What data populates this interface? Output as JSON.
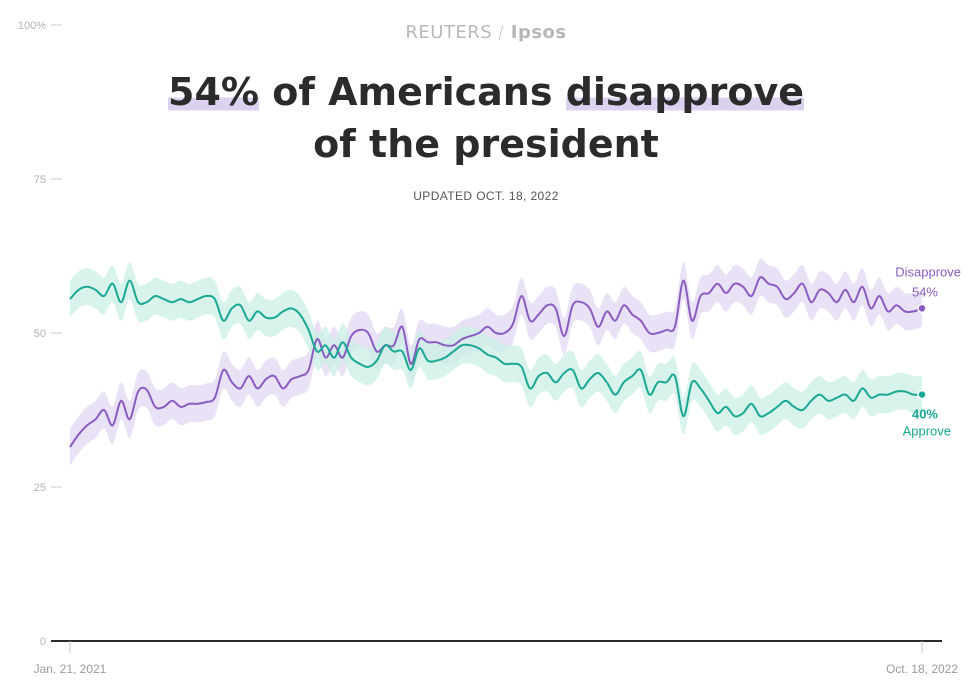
{
  "brand": {
    "left": "REUTERS",
    "sep": "/",
    "right": "Ipsos"
  },
  "title": {
    "hl1": "54%",
    "mid": " of Americans ",
    "hl2": "disapprove",
    "line2": "of the president"
  },
  "updated": "UPDATED OCT. 18, 2022",
  "colors": {
    "disapprove": "#8a5cc2",
    "disapprove_band": "#e2d7f2",
    "approve": "#1aa894",
    "approve_band": "#c9efe6",
    "axis": "#2a2a2a",
    "grid_tick": "#c8c8c8"
  },
  "chart_data": {
    "type": "line",
    "title": "54% of Americans disapprove of the president",
    "x_start_label": "Jan. 21, 2021",
    "x_end_label": "Oct. 18, 2022",
    "ylim": [
      0,
      100
    ],
    "yticks": [
      0,
      25,
      50,
      75,
      100
    ],
    "ytick_labels": [
      "0",
      "25",
      "50",
      "75",
      "100%"
    ],
    "x": [
      0,
      1,
      2,
      3,
      4,
      5,
      6,
      7,
      8,
      9,
      10,
      11,
      12,
      13,
      14,
      15,
      16,
      17,
      18,
      19,
      20,
      21,
      22,
      23,
      24,
      25,
      26,
      27,
      28,
      29,
      30,
      31,
      32,
      33,
      34,
      35,
      36,
      37,
      38,
      39,
      40,
      41,
      42,
      43,
      44,
      45,
      46,
      47,
      48,
      49,
      50,
      51,
      52,
      53,
      54,
      55,
      56,
      57,
      58,
      59,
      60,
      61,
      62,
      63,
      64,
      65,
      66,
      67,
      68,
      69,
      70,
      71,
      72,
      73,
      74,
      75,
      76,
      77,
      78,
      79,
      80,
      81,
      82,
      83,
      84,
      85,
      86,
      87,
      88,
      89,
      90,
      91,
      92,
      93,
      94,
      95,
      96,
      97,
      98,
      99,
      100
    ],
    "series": [
      {
        "name": "Disapprove",
        "end_label": "Disapprove",
        "end_value_label": "54%",
        "values": [
          31.5,
          33.5,
          35,
          36,
          37.5,
          35,
          39,
          36,
          40.5,
          40.8,
          38,
          38,
          39,
          38,
          38.5,
          38.5,
          38.8,
          39.5,
          44,
          42,
          41,
          43,
          41,
          42.5,
          43,
          41,
          42.5,
          43,
          44,
          49,
          46,
          48,
          46,
          49.5,
          50.5,
          50,
          47,
          48,
          48,
          51,
          45,
          49,
          48.5,
          48.5,
          48,
          48,
          49,
          49.5,
          50,
          51,
          50,
          50,
          51.5,
          56,
          52,
          53,
          54.5,
          54,
          49.5,
          54.5,
          55,
          54,
          51,
          53.5,
          52,
          54.5,
          53,
          52,
          50,
          50,
          50.5,
          51,
          58.5,
          52,
          56,
          56.5,
          58,
          56.5,
          58,
          57.5,
          56,
          59,
          58,
          57.5,
          55.5,
          56.5,
          58,
          55,
          57,
          56.5,
          55,
          57,
          55,
          57.5,
          54,
          56,
          53.5,
          54.5,
          53.5,
          53.5,
          54
        ],
        "band": 3
      },
      {
        "name": "Approve",
        "end_label": "Approve",
        "end_value_label": "40%",
        "values": [
          55.5,
          57,
          57.5,
          57,
          56,
          58,
          55,
          58.5,
          55,
          55,
          56,
          55.5,
          55,
          55.5,
          55,
          55.5,
          56,
          55.5,
          52,
          54,
          54.5,
          52,
          53.5,
          52.5,
          52.5,
          53.5,
          54,
          53,
          50.5,
          47,
          48,
          46,
          48.5,
          46,
          45,
          44.5,
          45.5,
          48,
          47,
          47,
          44,
          47.5,
          45.5,
          45.5,
          46,
          47,
          48,
          48,
          47.5,
          46.5,
          46,
          45,
          45,
          44.5,
          41,
          43,
          43.5,
          42,
          43.5,
          44,
          41,
          42.5,
          43.5,
          42,
          40,
          42,
          43,
          44,
          40,
          42,
          42,
          43,
          36.5,
          42,
          41,
          39,
          37,
          38,
          36.5,
          37,
          38.5,
          36.5,
          37,
          38,
          39,
          38,
          37.5,
          39,
          40,
          39,
          39.5,
          40,
          39,
          41,
          39.5,
          40,
          40,
          40.5,
          40.5,
          40,
          40
        ],
        "band": 3
      }
    ]
  }
}
